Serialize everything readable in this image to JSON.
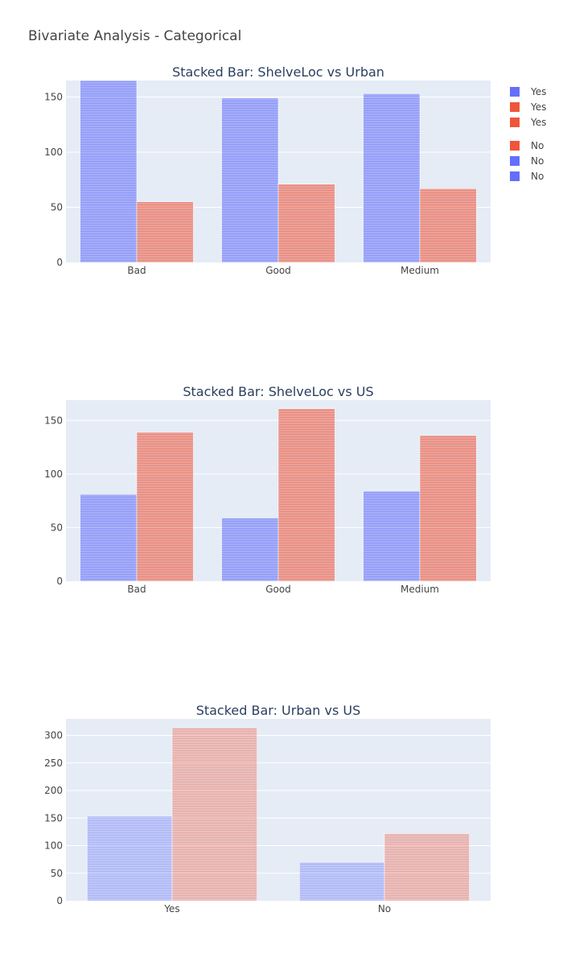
{
  "title": "Bivariate Analysis - Categorical",
  "colors": {
    "series_a": "#636efa",
    "series_b": "#ef553b",
    "plot_bg": "#e5ecf6",
    "grid": "#ffffff"
  },
  "legend": {
    "placement": "top-right",
    "entries": [
      {
        "label": "Yes",
        "color": "#636efa"
      },
      {
        "label": "Yes",
        "color": "#ef553b"
      },
      {
        "label": "Yes",
        "color": "#ef553b"
      },
      {
        "label": "No",
        "color": "#ef553b"
      },
      {
        "label": "No",
        "color": "#636efa"
      },
      {
        "label": "No",
        "color": "#636efa"
      }
    ]
  },
  "chart_data": [
    {
      "type": "bar",
      "title": "Stacked Bar: ShelveLoc vs Urban",
      "categories": [
        "Bad",
        "Good",
        "Medium"
      ],
      "series": [
        {
          "color": "#636efa",
          "values": [
            165,
            149,
            153
          ]
        },
        {
          "color": "#ef553b",
          "values": [
            55,
            71,
            67
          ]
        }
      ],
      "ylim": [
        0,
        165
      ],
      "yticks": [
        0,
        50,
        100,
        150
      ],
      "grid": true
    },
    {
      "type": "bar",
      "title": "Stacked Bar: ShelveLoc vs US",
      "categories": [
        "Bad",
        "Good",
        "Medium"
      ],
      "series": [
        {
          "color": "#636efa",
          "values": [
            81,
            59,
            84
          ]
        },
        {
          "color": "#ef553b",
          "values": [
            139,
            161,
            136
          ]
        }
      ],
      "ylim": [
        0,
        169
      ],
      "yticks": [
        0,
        50,
        100,
        150
      ],
      "grid": true
    },
    {
      "type": "bar",
      "title": "Stacked Bar: Urban vs US",
      "categories": [
        "Yes",
        "No"
      ],
      "series": [
        {
          "color": "#636efa",
          "values": [
            154,
            70
          ]
        },
        {
          "color": "#ef553b",
          "values": [
            314,
            122
          ]
        }
      ],
      "ylim": [
        0,
        330
      ],
      "yticks": [
        0,
        50,
        100,
        150,
        200,
        250,
        300
      ],
      "grid": true
    }
  ]
}
